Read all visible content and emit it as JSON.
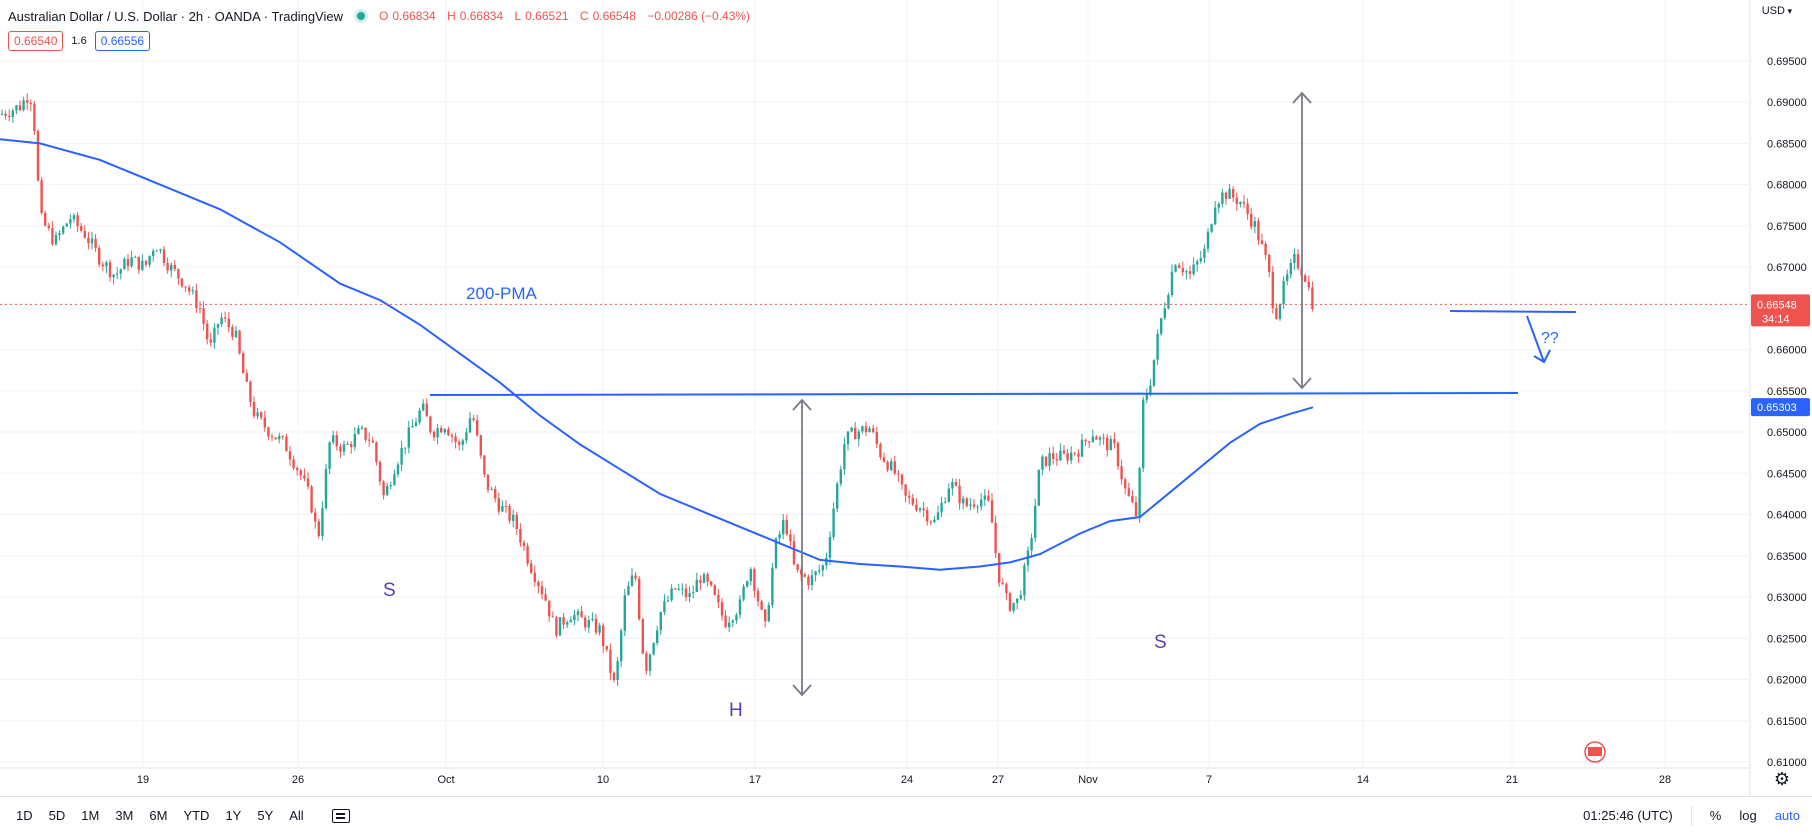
{
  "header": {
    "title": "Australian Dollar / U.S. Dollar · 2h · OANDA · TradingView",
    "ohlc": {
      "o_label": "O",
      "o": "0.66834",
      "h_label": "H",
      "h": "0.66834",
      "l_label": "L",
      "l": "0.66521",
      "c_label": "C",
      "c": "0.66548",
      "change": "−0.00286 (−0.43%)"
    },
    "sell_price": "0.66540",
    "spread": "1.6",
    "buy_price": "0.66556"
  },
  "currency_label": "USD",
  "toolbar": {
    "timeframes": [
      "1D",
      "5D",
      "1M",
      "3M",
      "6M",
      "YTD",
      "1Y",
      "5Y",
      "All"
    ],
    "clock": "01:25:46 (UTC)",
    "percent": "%",
    "log": "log",
    "auto": "auto"
  },
  "colors": {
    "up": "#26a69a",
    "down": "#ef5350",
    "ma": "#2962ff",
    "annotation_text": "#5b3cb4",
    "arrow": "#787b86",
    "price_label_bg": "#ef5350",
    "neckline_label_bg": "#2962ff"
  },
  "chart_data": {
    "type": "candlestick",
    "symbol": "AUDUSD",
    "interval": "2h",
    "x_ticks": [
      "19",
      "26",
      "Oct",
      "10",
      "17",
      "24",
      "27",
      "Nov",
      "7",
      "14",
      "21",
      "28"
    ],
    "y_ticks": [
      "0.69500",
      "0.69000",
      "0.68500",
      "0.68000",
      "0.67500",
      "0.67000",
      "0.66500",
      "0.66000",
      "0.65500",
      "0.65000",
      "0.64500",
      "0.64000",
      "0.63500",
      "0.63000",
      "0.62500",
      "0.62000",
      "0.61500",
      "0.61000"
    ],
    "ylim": [
      0.61,
      0.6985
    ],
    "last_price": "0.66548",
    "countdown": "34:14",
    "neckline_price": "0.65303",
    "price_path": [
      [
        0,
        0.6885
      ],
      [
        10,
        0.689
      ],
      [
        20,
        0.6895
      ],
      [
        30,
        0.6912
      ],
      [
        35,
        0.6865
      ],
      [
        40,
        0.676
      ],
      [
        55,
        0.673
      ],
      [
        70,
        0.676
      ],
      [
        85,
        0.674
      ],
      [
        100,
        0.671
      ],
      [
        115,
        0.669
      ],
      [
        130,
        0.671
      ],
      [
        145,
        0.67
      ],
      [
        155,
        0.673
      ],
      [
        170,
        0.67
      ],
      [
        185,
        0.668
      ],
      [
        200,
        0.665
      ],
      [
        210,
        0.66
      ],
      [
        220,
        0.664
      ],
      [
        235,
        0.662
      ],
      [
        245,
        0.656
      ],
      [
        255,
        0.652
      ],
      [
        270,
        0.65
      ],
      [
        285,
        0.6485
      ],
      [
        300,
        0.645
      ],
      [
        310,
        0.642
      ],
      [
        318,
        0.637
      ],
      [
        330,
        0.649
      ],
      [
        345,
        0.648
      ],
      [
        360,
        0.65
      ],
      [
        372,
        0.649
      ],
      [
        384,
        0.642
      ],
      [
        395,
        0.646
      ],
      [
        410,
        0.65
      ],
      [
        422,
        0.653
      ],
      [
        432,
        0.65
      ],
      [
        445,
        0.651
      ],
      [
        460,
        0.648
      ],
      [
        472,
        0.6525
      ],
      [
        485,
        0.644
      ],
      [
        500,
        0.641
      ],
      [
        515,
        0.639
      ],
      [
        530,
        0.634
      ],
      [
        545,
        0.63
      ],
      [
        555,
        0.626
      ],
      [
        570,
        0.628
      ],
      [
        585,
        0.627
      ],
      [
        600,
        0.626
      ],
      [
        615,
        0.619
      ],
      [
        625,
        0.63
      ],
      [
        635,
        0.633
      ],
      [
        645,
        0.621
      ],
      [
        660,
        0.628
      ],
      [
        675,
        0.631
      ],
      [
        690,
        0.63
      ],
      [
        700,
        0.6325
      ],
      [
        710,
        0.631
      ],
      [
        725,
        0.627
      ],
      [
        740,
        0.629
      ],
      [
        750,
        0.634
      ],
      [
        765,
        0.626
      ],
      [
        775,
        0.636
      ],
      [
        785,
        0.6395
      ],
      [
        795,
        0.633
      ],
      [
        810,
        0.632
      ],
      [
        825,
        0.634
      ],
      [
        835,
        0.642
      ],
      [
        845,
        0.649
      ],
      [
        855,
        0.65
      ],
      [
        870,
        0.6505
      ],
      [
        880,
        0.6475
      ],
      [
        895,
        0.645
      ],
      [
        905,
        0.642
      ],
      [
        920,
        0.641
      ],
      [
        935,
        0.639
      ],
      [
        950,
        0.644
      ],
      [
        965,
        0.641
      ],
      [
        980,
        0.642
      ],
      [
        990,
        0.641
      ],
      [
        998,
        0.633
      ],
      [
        1008,
        0.629
      ],
      [
        1018,
        0.6295
      ],
      [
        1030,
        0.636
      ],
      [
        1040,
        0.646
      ],
      [
        1050,
        0.647
      ],
      [
        1065,
        0.647
      ],
      [
        1080,
        0.648
      ],
      [
        1092,
        0.65
      ],
      [
        1100,
        0.649
      ],
      [
        1115,
        0.648
      ],
      [
        1125,
        0.643
      ],
      [
        1138,
        0.6395
      ],
      [
        1142,
        0.653
      ],
      [
        1150,
        0.656
      ],
      [
        1160,
        0.663
      ],
      [
        1175,
        0.671
      ],
      [
        1190,
        0.669
      ],
      [
        1205,
        0.672
      ],
      [
        1215,
        0.678
      ],
      [
        1225,
        0.679
      ],
      [
        1240,
        0.678
      ],
      [
        1255,
        0.675
      ],
      [
        1268,
        0.67
      ],
      [
        1275,
        0.664
      ],
      [
        1285,
        0.668
      ],
      [
        1295,
        0.671
      ],
      [
        1305,
        0.669
      ],
      [
        1313,
        0.6655
      ]
    ],
    "ma_path": [
      [
        0,
        0.6855
      ],
      [
        40,
        0.685
      ],
      [
        100,
        0.683
      ],
      [
        160,
        0.68
      ],
      [
        220,
        0.677
      ],
      [
        280,
        0.673
      ],
      [
        340,
        0.668
      ],
      [
        380,
        0.666
      ],
      [
        420,
        0.663
      ],
      [
        460,
        0.6595
      ],
      [
        500,
        0.656
      ],
      [
        540,
        0.652
      ],
      [
        580,
        0.6485
      ],
      [
        620,
        0.6455
      ],
      [
        660,
        0.6425
      ],
      [
        700,
        0.6405
      ],
      [
        740,
        0.6385
      ],
      [
        780,
        0.6365
      ],
      [
        820,
        0.6345
      ],
      [
        860,
        0.634
      ],
      [
        900,
        0.6337
      ],
      [
        940,
        0.6333
      ],
      [
        980,
        0.6337
      ],
      [
        1010,
        0.6342
      ],
      [
        1040,
        0.6352
      ],
      [
        1080,
        0.6377
      ],
      [
        1110,
        0.6392
      ],
      [
        1140,
        0.6397
      ],
      [
        1170,
        0.6427
      ],
      [
        1200,
        0.6457
      ],
      [
        1230,
        0.6487
      ],
      [
        1260,
        0.651
      ],
      [
        1290,
        0.6522
      ],
      [
        1313,
        0.653
      ]
    ],
    "annotations": {
      "ma_label": "200-PMA",
      "left_shoulder": "S",
      "head": "H",
      "right_shoulder": "S",
      "question": "??"
    }
  }
}
